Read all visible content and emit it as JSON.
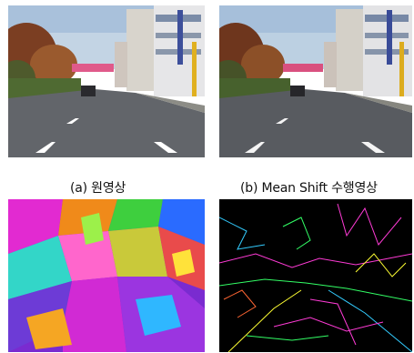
{
  "figure": {
    "panels": [
      {
        "id": "a",
        "caption": "(a) 원영상",
        "content": "original street scene photo",
        "palette": {
          "sky": "#b9cde0",
          "road": "#5f6266",
          "trees": "#8a4a2a"
        }
      },
      {
        "id": "b",
        "caption": "(b) Mean Shift 수행영상",
        "content": "mean shift filtered street scene",
        "palette": {
          "sky": "#b4c9dc",
          "road": "#56595d",
          "trees": "#7a3f22"
        }
      },
      {
        "id": "c",
        "caption": "",
        "content": "color segmentation label map",
        "palette": {
          "magenta": "#e21bd4",
          "purple": "#7b1fc8",
          "orange": "#f08a1a",
          "green": "#3ecf3e",
          "blue": "#2a6bff",
          "pink": "#ff66cc"
        }
      },
      {
        "id": "d",
        "caption": "",
        "content": "segment boundary edge map",
        "palette": {
          "background": "#000000",
          "edge1": "#ff3bd6",
          "edge2": "#33ff66",
          "edge3": "#ffff33",
          "edge4": "#33ccff"
        }
      }
    ]
  }
}
